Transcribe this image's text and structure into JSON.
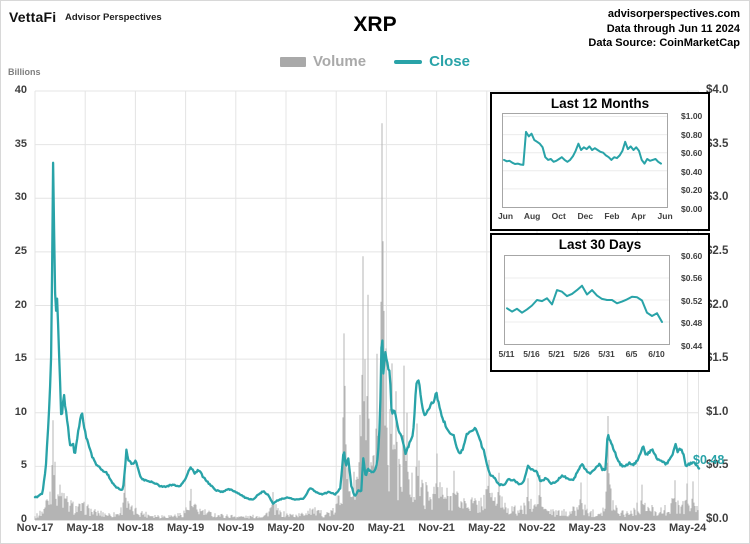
{
  "header": {
    "brand": "VettaFi",
    "brand_sub": "Advisor Perspectives",
    "site": "advisorperspectives.com",
    "data_through": "Data through Jun 11 2024",
    "data_source": "Data Source: CoinMarketCap"
  },
  "legend": {
    "volume": "Volume",
    "close": "Close"
  },
  "colors": {
    "teal": "#29a3a8",
    "volume_gray": "#b4b4b4",
    "legend_gray": "#a9a9a9",
    "axis_text": "#3f3f3f",
    "grid": "#e4e4e4",
    "axis_line": "#bfbfbf"
  },
  "main": {
    "y_left_title": "Billions",
    "x_labels": [
      "Nov-17",
      "May-18",
      "Nov-18",
      "May-19",
      "Nov-19",
      "May-20",
      "Nov-20",
      "May-21",
      "Nov-21",
      "May-22",
      "Nov-22",
      "May-23",
      "Nov-23",
      "May-24"
    ],
    "y_left_labels": [
      "40",
      "35",
      "30",
      "25",
      "20",
      "15",
      "10",
      "5",
      "0"
    ],
    "y_right_labels": [
      "$4.0",
      "$3.5",
      "$3.0",
      "$2.5",
      "$2.0",
      "$1.5",
      "$1.0",
      "$0.5",
      "$0.0"
    ],
    "last_price_label": "$0.48"
  },
  "chart_data": [
    {
      "type": "line+bar",
      "title": "XRP",
      "x_unit": "months since Nov-2017",
      "x_range": [
        0,
        79.37
      ],
      "ylim_left_volume_billions": [
        0,
        40
      ],
      "ylim_right_close_usd": [
        0,
        4
      ],
      "legend_position": "top",
      "grid": true,
      "last_close": 0.48,
      "close_anchors": [
        [
          0,
          0.21
        ],
        [
          0.4,
          0.22
        ],
        [
          0.9,
          0.25
        ],
        [
          1.3,
          0.5
        ],
        [
          1.6,
          0.9
        ],
        [
          1.9,
          1.4
        ],
        [
          2.05,
          2.4
        ],
        [
          2.15,
          3.38
        ],
        [
          2.3,
          2.6
        ],
        [
          2.45,
          1.9
        ],
        [
          2.65,
          2.05
        ],
        [
          2.9,
          1.5
        ],
        [
          3.15,
          0.92
        ],
        [
          3.45,
          1.18
        ],
        [
          3.8,
          0.95
        ],
        [
          4.2,
          0.7
        ],
        [
          4.55,
          0.71
        ],
        [
          4.75,
          0.6
        ],
        [
          5.4,
          0.95
        ],
        [
          5.6,
          1.0
        ],
        [
          5.9,
          0.85
        ],
        [
          6.3,
          0.72
        ],
        [
          6.8,
          0.6
        ],
        [
          7.3,
          0.52
        ],
        [
          7.9,
          0.47
        ],
        [
          8.5,
          0.45
        ],
        [
          9.2,
          0.35
        ],
        [
          9.8,
          0.3
        ],
        [
          10.5,
          0.28
        ],
        [
          10.75,
          0.47
        ],
        [
          10.9,
          0.65
        ],
        [
          11.2,
          0.55
        ],
        [
          11.6,
          0.52
        ],
        [
          12.1,
          0.55
        ],
        [
          12.6,
          0.4
        ],
        [
          13.1,
          0.37
        ],
        [
          13.9,
          0.36
        ],
        [
          14.8,
          0.32
        ],
        [
          15.6,
          0.31
        ],
        [
          16.4,
          0.33
        ],
        [
          17.3,
          0.31
        ],
        [
          18.0,
          0.38
        ],
        [
          18.6,
          0.5
        ],
        [
          19.1,
          0.43
        ],
        [
          19.6,
          0.47
        ],
        [
          20.1,
          0.4
        ],
        [
          20.9,
          0.33
        ],
        [
          21.6,
          0.28
        ],
        [
          22.4,
          0.26
        ],
        [
          23.1,
          0.29
        ],
        [
          23.8,
          0.27
        ],
        [
          24.5,
          0.24
        ],
        [
          25.3,
          0.2
        ],
        [
          26.1,
          0.19
        ],
        [
          26.7,
          0.24
        ],
        [
          27.3,
          0.27
        ],
        [
          27.9,
          0.23
        ],
        [
          28.45,
          0.15
        ],
        [
          28.9,
          0.18
        ],
        [
          29.6,
          0.2
        ],
        [
          30.3,
          0.21
        ],
        [
          31.1,
          0.19
        ],
        [
          32.1,
          0.2
        ],
        [
          32.9,
          0.3
        ],
        [
          33.6,
          0.26
        ],
        [
          34.3,
          0.24
        ],
        [
          35.1,
          0.26
        ],
        [
          35.9,
          0.24
        ],
        [
          36.5,
          0.3
        ],
        [
          36.9,
          0.66
        ],
        [
          37.15,
          0.5
        ],
        [
          37.45,
          0.58
        ],
        [
          37.8,
          0.32
        ],
        [
          38.2,
          0.22
        ],
        [
          38.7,
          0.28
        ],
        [
          39.0,
          0.27
        ],
        [
          39.25,
          0.6
        ],
        [
          39.5,
          0.4
        ],
        [
          39.8,
          0.48
        ],
        [
          40.2,
          0.44
        ],
        [
          40.7,
          0.47
        ],
        [
          41.0,
          0.6
        ],
        [
          41.25,
          1.0
        ],
        [
          41.45,
          1.83
        ],
        [
          41.65,
          1.35
        ],
        [
          41.85,
          1.6
        ],
        [
          42.1,
          1.45
        ],
        [
          42.4,
          1.38
        ],
        [
          42.65,
          0.95
        ],
        [
          42.9,
          1.05
        ],
        [
          43.3,
          0.88
        ],
        [
          43.8,
          0.78
        ],
        [
          44.3,
          0.62
        ],
        [
          44.8,
          0.72
        ],
        [
          45.2,
          0.8
        ],
        [
          45.55,
          1.25
        ],
        [
          45.8,
          1.32
        ],
        [
          46.3,
          1.07
        ],
        [
          46.6,
          0.95
        ],
        [
          47.1,
          1.05
        ],
        [
          47.6,
          1.1
        ],
        [
          48.0,
          1.18
        ],
        [
          48.5,
          1.0
        ],
        [
          49.1,
          0.88
        ],
        [
          49.6,
          0.8
        ],
        [
          50.1,
          0.78
        ],
        [
          50.6,
          0.62
        ],
        [
          51.1,
          0.65
        ],
        [
          51.6,
          0.8
        ],
        [
          52.1,
          0.82
        ],
        [
          52.6,
          0.85
        ],
        [
          53.1,
          0.76
        ],
        [
          53.7,
          0.63
        ],
        [
          54.3,
          0.43
        ],
        [
          54.9,
          0.4
        ],
        [
          55.4,
          0.33
        ],
        [
          56.1,
          0.33
        ],
        [
          56.6,
          0.38
        ],
        [
          57.3,
          0.37
        ],
        [
          57.9,
          0.33
        ],
        [
          58.4,
          0.35
        ],
        [
          58.9,
          0.5
        ],
        [
          59.4,
          0.47
        ],
        [
          60.0,
          0.45
        ],
        [
          60.4,
          0.36
        ],
        [
          61.1,
          0.39
        ],
        [
          61.7,
          0.34
        ],
        [
          62.3,
          0.36
        ],
        [
          62.9,
          0.41
        ],
        [
          63.4,
          0.4
        ],
        [
          63.9,
          0.37
        ],
        [
          64.4,
          0.38
        ],
        [
          64.9,
          0.46
        ],
        [
          65.4,
          0.52
        ],
        [
          65.9,
          0.46
        ],
        [
          66.4,
          0.43
        ],
        [
          67.0,
          0.48
        ],
        [
          67.5,
          0.52
        ],
        [
          67.8,
          0.47
        ],
        [
          68.2,
          0.47
        ],
        [
          68.45,
          0.84
        ],
        [
          68.65,
          0.74
        ],
        [
          68.9,
          0.71
        ],
        [
          69.3,
          0.63
        ],
        [
          69.9,
          0.52
        ],
        [
          70.4,
          0.5
        ],
        [
          71.0,
          0.53
        ],
        [
          71.5,
          0.51
        ],
        [
          72.0,
          0.56
        ],
        [
          72.4,
          0.62
        ],
        [
          72.7,
          0.7
        ],
        [
          73.0,
          0.61
        ],
        [
          73.4,
          0.63
        ],
        [
          73.7,
          0.66
        ],
        [
          74.0,
          0.62
        ],
        [
          74.4,
          0.57
        ],
        [
          74.9,
          0.55
        ],
        [
          75.4,
          0.52
        ],
        [
          75.9,
          0.56
        ],
        [
          76.3,
          0.63
        ],
        [
          76.55,
          0.72
        ],
        [
          76.8,
          0.62
        ],
        [
          77.1,
          0.67
        ],
        [
          77.5,
          0.62
        ],
        [
          77.8,
          0.5
        ],
        [
          78.2,
          0.52
        ],
        [
          78.6,
          0.54
        ],
        [
          79.0,
          0.51
        ],
        [
          79.37,
          0.48
        ]
      ],
      "volume_envelope": [
        [
          0,
          0.4
        ],
        [
          1.0,
          1.2
        ],
        [
          1.8,
          3.5
        ],
        [
          2.15,
          6.5
        ],
        [
          2.6,
          4.0
        ],
        [
          3.2,
          3.0
        ],
        [
          4,
          2.0
        ],
        [
          5,
          1.5
        ],
        [
          6,
          1.6
        ],
        [
          7,
          1.0
        ],
        [
          8,
          0.85
        ],
        [
          9,
          0.7
        ],
        [
          10,
          0.8
        ],
        [
          10.8,
          2.2
        ],
        [
          11.5,
          1.3
        ],
        [
          12.5,
          1.0
        ],
        [
          13.5,
          0.7
        ],
        [
          14.5,
          0.55
        ],
        [
          15.5,
          0.5
        ],
        [
          16.5,
          0.55
        ],
        [
          17.5,
          0.7
        ],
        [
          18.5,
          1.8
        ],
        [
          19.5,
          1.3
        ],
        [
          20.5,
          0.9
        ],
        [
          21.5,
          0.7
        ],
        [
          22.5,
          0.55
        ],
        [
          23.5,
          0.5
        ],
        [
          24.5,
          0.42
        ],
        [
          25.5,
          0.4
        ],
        [
          26.5,
          0.5
        ],
        [
          27.5,
          0.6
        ],
        [
          28.45,
          1.8
        ],
        [
          29.2,
          0.9
        ],
        [
          30,
          0.7
        ],
        [
          31,
          0.6
        ],
        [
          32,
          0.7
        ],
        [
          32.9,
          1.5
        ],
        [
          33.8,
          0.9
        ],
        [
          34.8,
          0.8
        ],
        [
          35.8,
          1.1
        ],
        [
          36.6,
          3.5
        ],
        [
          36.95,
          8.5
        ],
        [
          37.4,
          5.0
        ],
        [
          38,
          4.0
        ],
        [
          38.7,
          5.5
        ],
        [
          39.25,
          11
        ],
        [
          39.7,
          7.5
        ],
        [
          40.2,
          5.0
        ],
        [
          40.8,
          7.0
        ],
        [
          41.45,
          18
        ],
        [
          41.8,
          13
        ],
        [
          42.3,
          9
        ],
        [
          42.7,
          11
        ],
        [
          43.3,
          6.5
        ],
        [
          44,
          5
        ],
        [
          44.6,
          4
        ],
        [
          45.3,
          4.5
        ],
        [
          45.7,
          6
        ],
        [
          46.3,
          3.8
        ],
        [
          47,
          3.2
        ],
        [
          47.6,
          3.4
        ],
        [
          48.1,
          4
        ],
        [
          48.7,
          3.2
        ],
        [
          49.5,
          2.8
        ],
        [
          50.2,
          3
        ],
        [
          51,
          2.2
        ],
        [
          52,
          2.3
        ],
        [
          53,
          1.9
        ],
        [
          54.3,
          3.4
        ],
        [
          55,
          2.6
        ],
        [
          55.5,
          2.8
        ],
        [
          56.5,
          1.6
        ],
        [
          57.5,
          1.2
        ],
        [
          58.3,
          1.3
        ],
        [
          58.9,
          2.2
        ],
        [
          59.6,
          1.6
        ],
        [
          60.35,
          2.4
        ],
        [
          61,
          1.3
        ],
        [
          62,
          0.9
        ],
        [
          63,
          0.9
        ],
        [
          64,
          1.1
        ],
        [
          64.9,
          1.4
        ],
        [
          65.4,
          1.6
        ],
        [
          66.2,
          1.0
        ],
        [
          67.2,
          0.9
        ],
        [
          68.1,
          1.6
        ],
        [
          68.45,
          5.5
        ],
        [
          68.8,
          3.2
        ],
        [
          69.4,
          1.6
        ],
        [
          70.2,
          1.0
        ],
        [
          71.2,
          1.0
        ],
        [
          72.2,
          1.7
        ],
        [
          73.0,
          1.5
        ],
        [
          74.0,
          1.3
        ],
        [
          75.0,
          1.1
        ],
        [
          76.0,
          1.8
        ],
        [
          76.6,
          2.2
        ],
        [
          77.3,
          1.7
        ],
        [
          77.9,
          2.1
        ],
        [
          78.6,
          1.4
        ],
        [
          79.37,
          1.2
        ]
      ],
      "volume_spikes": [
        [
          2.15,
          9.3
        ],
        [
          10.8,
          4.6
        ],
        [
          18.6,
          2.9
        ],
        [
          28.45,
          2.6
        ],
        [
          36.9,
          17.4
        ],
        [
          37.1,
          12.5
        ],
        [
          38.8,
          9.8
        ],
        [
          39.25,
          24.6
        ],
        [
          39.5,
          15.0
        ],
        [
          39.85,
          21.0
        ],
        [
          40.9,
          15.5
        ],
        [
          41.3,
          20.0
        ],
        [
          41.45,
          37.0
        ],
        [
          41.6,
          26.0
        ],
        [
          41.75,
          19.5
        ],
        [
          42.0,
          16.0
        ],
        [
          42.7,
          14.6
        ],
        [
          43.1,
          12.0
        ],
        [
          44.1,
          14.4
        ],
        [
          44.5,
          10.0
        ],
        [
          45.6,
          9.0
        ],
        [
          48.1,
          6.2
        ],
        [
          50.1,
          4.6
        ],
        [
          54.3,
          5.6
        ],
        [
          55.4,
          4.4
        ],
        [
          58.9,
          3.9
        ],
        [
          60.35,
          4.2
        ],
        [
          65.3,
          3.5
        ],
        [
          68.45,
          9.7
        ],
        [
          72.5,
          3.3
        ],
        [
          76.5,
          3.7
        ],
        [
          77.9,
          3.4
        ],
        [
          78.7,
          3.6
        ]
      ]
    },
    {
      "type": "line",
      "title": "Last 12 Months",
      "x_labels": [
        "Jun",
        "Aug",
        "Oct",
        "Dec",
        "Feb",
        "Apr",
        "Jun"
      ],
      "y_tick_labels": [
        "$1.00",
        "$0.80",
        "$0.60",
        "$0.40",
        "$0.20",
        "$0.00"
      ],
      "y_ticks": [
        1.0,
        0.8,
        0.6,
        0.4,
        0.2,
        0.0
      ],
      "ylim": [
        0,
        1.0
      ],
      "values": [
        0.52,
        0.505,
        0.51,
        0.49,
        0.475,
        0.48,
        0.47,
        0.465,
        0.83,
        0.78,
        0.81,
        0.74,
        0.72,
        0.7,
        0.66,
        0.55,
        0.52,
        0.53,
        0.5,
        0.51,
        0.53,
        0.55,
        0.52,
        0.5,
        0.52,
        0.56,
        0.62,
        0.7,
        0.63,
        0.66,
        0.64,
        0.67,
        0.63,
        0.65,
        0.63,
        0.61,
        0.6,
        0.57,
        0.55,
        0.52,
        0.55,
        0.54,
        0.57,
        0.62,
        0.72,
        0.64,
        0.67,
        0.63,
        0.66,
        0.62,
        0.52,
        0.48,
        0.53,
        0.51,
        0.52,
        0.53,
        0.5,
        0.48
      ]
    },
    {
      "type": "line",
      "title": "Last 30 Days",
      "x_labels": [
        "5/11",
        "5/16",
        "5/21",
        "5/26",
        "5/31",
        "6/5",
        "6/10"
      ],
      "y_tick_labels": [
        "$0.60",
        "$0.56",
        "$0.52",
        "$0.48",
        "$0.44"
      ],
      "y_ticks": [
        0.6,
        0.56,
        0.52,
        0.48,
        0.44
      ],
      "ylim": [
        0.44,
        0.6
      ],
      "values": [
        0.505,
        0.499,
        0.504,
        0.497,
        0.503,
        0.51,
        0.52,
        0.518,
        0.523,
        0.512,
        0.538,
        0.535,
        0.527,
        0.531,
        0.538,
        0.546,
        0.53,
        0.538,
        0.528,
        0.522,
        0.52,
        0.52,
        0.514,
        0.517,
        0.521,
        0.526,
        0.525,
        0.519,
        0.497,
        0.491,
        0.496,
        0.48
      ]
    }
  ]
}
